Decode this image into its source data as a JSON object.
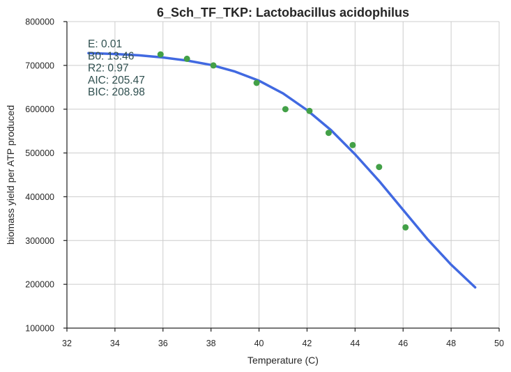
{
  "chart_data": {
    "type": "scatter",
    "title": "6_Sch_TF_TKP: Lactobacillus acidophilus",
    "xlabel": "Temperature (C)",
    "ylabel": "biomass yield per ATP produced",
    "xlim": [
      32,
      50
    ],
    "ylim": [
      100000,
      800000
    ],
    "x_ticks": [
      32,
      34,
      36,
      38,
      40,
      42,
      44,
      46,
      48,
      50
    ],
    "y_ticks": [
      100000,
      200000,
      300000,
      400000,
      500000,
      600000,
      700000,
      800000
    ],
    "x_tick_labels": [
      "32",
      "34",
      "36",
      "38",
      "40",
      "42",
      "44",
      "46",
      "48",
      "50"
    ],
    "y_tick_labels": [
      "100000",
      "200000",
      "300000",
      "400000",
      "500000",
      "600000",
      "700000",
      "800000"
    ],
    "grid": true,
    "series": [
      {
        "kind": "points",
        "color": "#43a047",
        "points": [
          {
            "x": 35.9,
            "y": 725000
          },
          {
            "x": 37.0,
            "y": 715000
          },
          {
            "x": 38.1,
            "y": 700000
          },
          {
            "x": 39.9,
            "y": 660000
          },
          {
            "x": 41.1,
            "y": 600000
          },
          {
            "x": 42.1,
            "y": 596000
          },
          {
            "x": 42.9,
            "y": 546000
          },
          {
            "x": 43.9,
            "y": 518000
          },
          {
            "x": 45.0,
            "y": 468000
          },
          {
            "x": 46.1,
            "y": 330000
          }
        ]
      },
      {
        "kind": "line",
        "color": "#4169e1",
        "points": [
          {
            "x": 32.9,
            "y": 728000
          },
          {
            "x": 34.0,
            "y": 726000
          },
          {
            "x": 35.0,
            "y": 723000
          },
          {
            "x": 36.0,
            "y": 718000
          },
          {
            "x": 37.0,
            "y": 711000
          },
          {
            "x": 38.0,
            "y": 701000
          },
          {
            "x": 39.0,
            "y": 686000
          },
          {
            "x": 40.0,
            "y": 665000
          },
          {
            "x": 41.0,
            "y": 636000
          },
          {
            "x": 42.0,
            "y": 598000
          },
          {
            "x": 43.0,
            "y": 552000
          },
          {
            "x": 44.0,
            "y": 497000
          },
          {
            "x": 45.0,
            "y": 436000
          },
          {
            "x": 46.0,
            "y": 370000
          },
          {
            "x": 47.0,
            "y": 304000
          },
          {
            "x": 48.0,
            "y": 245000
          },
          {
            "x": 49.0,
            "y": 193000
          }
        ]
      }
    ],
    "annotations": [
      "E:  0.01",
      "B0:  13.46",
      "R2:  0.97",
      "AIC: 205.47",
      "BIC: 208.98"
    ]
  }
}
